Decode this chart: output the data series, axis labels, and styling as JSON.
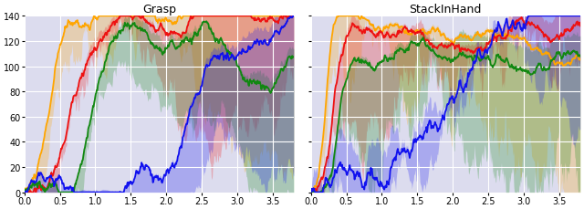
{
  "title_left": "Grasp",
  "title_right": "StackInHand",
  "xlim": [
    0.0,
    3.8
  ],
  "ylim": [
    0,
    140
  ],
  "xticks": [
    0.0,
    0.5,
    1.0,
    1.5,
    2.0,
    2.5,
    3.0,
    3.5
  ],
  "yticks": [
    0,
    20,
    40,
    60,
    80,
    100,
    120,
    140
  ],
  "colors": {
    "orange": "#FFA500",
    "red": "#EE1111",
    "green": "#118811",
    "blue": "#1111EE"
  },
  "fill_alpha": 0.25,
  "line_width": 1.3,
  "bg_color": "#DCDCEE"
}
